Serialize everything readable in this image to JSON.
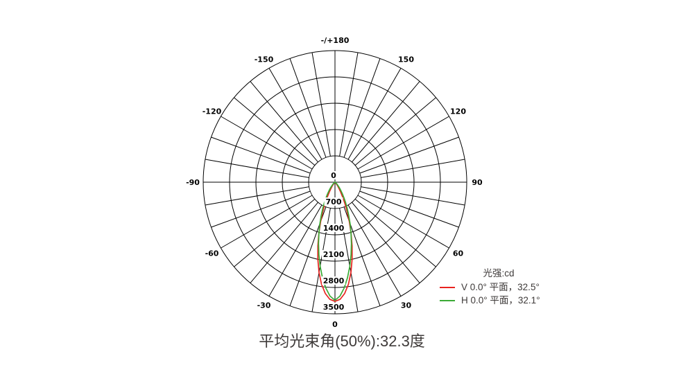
{
  "chart_data": {
    "type": "polar_line",
    "legend_title": "光强:cd",
    "unit": "cd",
    "caption": "平均光束角(50%):32.3度",
    "avg_beam_angle_50pct_deg": 32.3,
    "radial_max": 3500,
    "radial_ticks": [
      0,
      700,
      1400,
      2100,
      2800,
      3500
    ],
    "angle_ticks": [
      {
        "deg": 180,
        "label": "-/+180"
      },
      {
        "deg": 150,
        "label": "150"
      },
      {
        "deg": 120,
        "label": "120"
      },
      {
        "deg": 90,
        "label": "90"
      },
      {
        "deg": 60,
        "label": "60"
      },
      {
        "deg": 30,
        "label": "30"
      },
      {
        "deg": 0,
        "label": "0"
      },
      {
        "deg": -30,
        "label": "-30"
      },
      {
        "deg": -60,
        "label": "-60"
      },
      {
        "deg": -90,
        "label": "-90"
      },
      {
        "deg": -120,
        "label": "-120"
      },
      {
        "deg": -150,
        "label": "-150"
      }
    ],
    "grid": {
      "spoke_step_deg": 10,
      "ring_step_cd": 700,
      "rings": 5,
      "angle_zero_position": "bottom"
    },
    "series": [
      {
        "id": "v-plane",
        "name": "V 0.0° 平面，32.5°",
        "plane": "V 0.0°",
        "beam_angle_deg": 32.5,
        "peak_cd": 3170,
        "color": "#e8231f",
        "points": [
          [
            -90,
            0
          ],
          [
            -70,
            0
          ],
          [
            -60,
            1
          ],
          [
            -55,
            2
          ],
          [
            -50,
            4
          ],
          [
            -45,
            16
          ],
          [
            -40,
            48
          ],
          [
            -37.5,
            79
          ],
          [
            -35,
            127
          ],
          [
            -32.5,
            198
          ],
          [
            -30,
            298
          ],
          [
            -27.5,
            436
          ],
          [
            -25,
            614
          ],
          [
            -22.5,
            839
          ],
          [
            -20,
            1109
          ],
          [
            -17.5,
            1419
          ],
          [
            -15,
            1756
          ],
          [
            -12.5,
            2104
          ],
          [
            -10,
            2438
          ],
          [
            -7.5,
            2736
          ],
          [
            -5,
            2969
          ],
          [
            -2.5,
            3118
          ],
          [
            0,
            3170
          ],
          [
            2.5,
            3118
          ],
          [
            5,
            2969
          ],
          [
            7.5,
            2736
          ],
          [
            10,
            2438
          ],
          [
            12.5,
            2104
          ],
          [
            15,
            1756
          ],
          [
            17.5,
            1419
          ],
          [
            20,
            1109
          ],
          [
            22.5,
            839
          ],
          [
            25,
            614
          ],
          [
            27.5,
            436
          ],
          [
            30,
            298
          ],
          [
            32.5,
            198
          ],
          [
            35,
            127
          ],
          [
            37.5,
            79
          ],
          [
            40,
            48
          ],
          [
            45,
            16
          ],
          [
            50,
            4
          ],
          [
            55,
            2
          ],
          [
            60,
            1
          ],
          [
            70,
            0
          ],
          [
            90,
            0
          ]
        ]
      },
      {
        "id": "h-plane",
        "name": "H 0.0° 平面，32.1°",
        "plane": "H 0.0°",
        "beam_angle_deg": 32.1,
        "peak_cd": 3140,
        "color": "#3aaa35",
        "points": [
          [
            -90,
            0
          ],
          [
            -80,
            1
          ],
          [
            -70,
            3
          ],
          [
            -60,
            12
          ],
          [
            -55,
            23
          ],
          [
            -50,
            44
          ],
          [
            -45,
            85
          ],
          [
            -40,
            158
          ],
          [
            -37.5,
            212
          ],
          [
            -35,
            281
          ],
          [
            -32.5,
            368
          ],
          [
            -30,
            476
          ],
          [
            -27.5,
            609
          ],
          [
            -25,
            767
          ],
          [
            -22.5,
            955
          ],
          [
            -20,
            1172
          ],
          [
            -17.5,
            1416
          ],
          [
            -15,
            1686
          ],
          [
            -12.5,
            1974
          ],
          [
            -10,
            2269
          ],
          [
            -7.5,
            2558
          ],
          [
            -5,
            2821
          ],
          [
            -2.5,
            3031
          ],
          [
            0,
            3140
          ],
          [
            2.5,
            3031
          ],
          [
            5,
            2821
          ],
          [
            7.5,
            2558
          ],
          [
            10,
            2269
          ],
          [
            12.5,
            1974
          ],
          [
            15,
            1686
          ],
          [
            17.5,
            1416
          ],
          [
            20,
            1172
          ],
          [
            22.5,
            955
          ],
          [
            25,
            767
          ],
          [
            27.5,
            609
          ],
          [
            30,
            476
          ],
          [
            32.5,
            368
          ],
          [
            35,
            281
          ],
          [
            37.5,
            212
          ],
          [
            40,
            158
          ],
          [
            45,
            85
          ],
          [
            50,
            44
          ],
          [
            55,
            23
          ],
          [
            60,
            12
          ],
          [
            70,
            3
          ],
          [
            80,
            1
          ],
          [
            90,
            0
          ]
        ]
      }
    ]
  }
}
